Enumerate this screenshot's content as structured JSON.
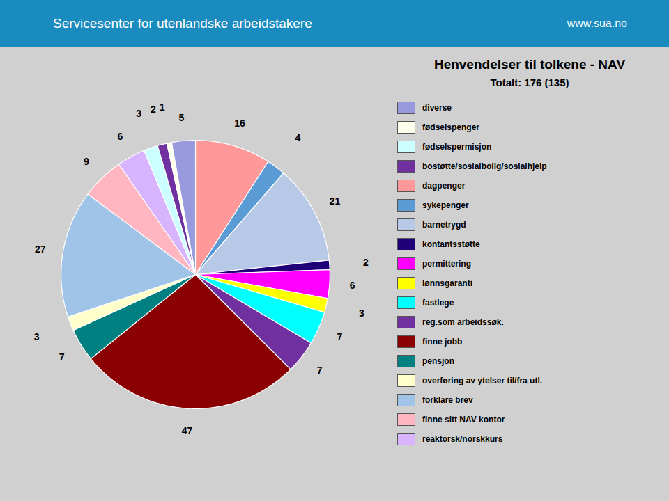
{
  "chart_data": {
    "type": "pie",
    "title": "Henvendelser til tolkene - NAV",
    "subtitle": "Totalt: 176 (135)",
    "annotations": [
      "Servicesenter for utenlandske arbeidstakere",
      "www.sua.no"
    ],
    "values": [
      16,
      4,
      21,
      2,
      6,
      3,
      7,
      7,
      47,
      7,
      3,
      27,
      9,
      6,
      3,
      2,
      1,
      5
    ],
    "colors": [
      "#ff9999",
      "#5b9bd5",
      "#b8c9e8",
      "#1f0078",
      "#ff00ff",
      "#ffff00",
      "#00ffff",
      "#7030a0",
      "#8b0000",
      "#008080",
      "#ffffcc",
      "#a0c4e8",
      "#ffb6c1",
      "#d8b4fe",
      "#ccffff",
      "#7030a0",
      "#ffffee",
      "#9999dd"
    ],
    "data_labels": true,
    "legend_labels": [
      "diverse",
      "fødselspenger",
      "fødselspermisjon",
      "bostøtte/sosialbolig/sosialhjelp",
      "dagpenger",
      "sykepenger",
      "barnetrygd",
      "kontantsstøtte",
      "permittering",
      "lønnsgaranti",
      "fastlege",
      "reg.som arbeidssøk.",
      "finne jobb",
      "pensjon",
      "overføring av ytelser til/fra utl.",
      "forklare brev",
      "finne sitt NAV kontor",
      "reaktorsk/norskkurs"
    ],
    "legend_colors": [
      "#9999dd",
      "#ffffee",
      "#ccffff",
      "#7030a0",
      "#ff9999",
      "#5b9bd5",
      "#b8c9e8",
      "#1f0078",
      "#ff00ff",
      "#ffff00",
      "#00ffff",
      "#7030a0",
      "#8b0000",
      "#008080",
      "#ffffcc",
      "#a0c4e8",
      "#ffb6c1",
      "#d8b4fe"
    ]
  }
}
